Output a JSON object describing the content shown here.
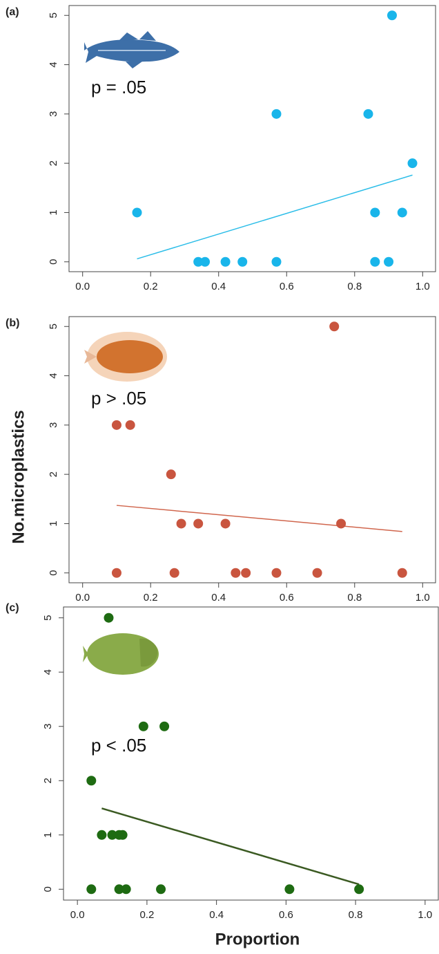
{
  "chart_data": [
    {
      "type": "scatter",
      "panel_label": "(a)",
      "annotation": "p = .05",
      "color": "#19b5ea",
      "x": [
        0.16,
        0.34,
        0.36,
        0.42,
        0.47,
        0.57,
        0.57,
        0.84,
        0.86,
        0.86,
        0.9,
        0.91,
        0.94,
        0.97
      ],
      "values": [
        1,
        0,
        0,
        0,
        0,
        0,
        3,
        3,
        1,
        0,
        0,
        5,
        1,
        2
      ],
      "fit": {
        "x": [
          0.16,
          0.97
        ],
        "values": [
          0.06,
          1.76
        ],
        "color": "#2bbde8"
      },
      "xlim": [
        -0.04,
        1.04
      ],
      "ylim": [
        -0.2,
        5.2
      ],
      "xticks": [
        {
          "value": 0,
          "label": "0.0"
        },
        0.2,
        0.4,
        0.6,
        0.8,
        {
          "value": 1,
          "label": "1.0"
        }
      ],
      "yticks": [
        0,
        1,
        2,
        3,
        4,
        5
      ]
    },
    {
      "type": "scatter",
      "panel_label": "(b)",
      "annotation": "p > .05",
      "color": "#c9553f",
      "x": [
        0.1,
        0.14,
        0.26,
        0.29,
        0.34,
        0.42,
        0.74,
        0.76,
        0.1,
        0.27,
        0.45,
        0.48,
        0.57,
        0.69,
        0.94
      ],
      "values": [
        3,
        3,
        2,
        1,
        1,
        1,
        5,
        1,
        0,
        0,
        0,
        0,
        0,
        0,
        0
      ],
      "fit": {
        "x": [
          0.1,
          0.94
        ],
        "values": [
          1.37,
          0.84
        ],
        "color": "#d0654c"
      },
      "xlim": [
        -0.04,
        1.04
      ],
      "ylim": [
        -0.2,
        5.2
      ],
      "xticks": [
        {
          "value": 0,
          "label": "0.0"
        },
        0.2,
        0.4,
        0.6,
        0.8,
        {
          "value": 1,
          "label": "1.0"
        }
      ],
      "yticks": [
        0,
        1,
        2,
        3,
        4,
        5
      ]
    },
    {
      "type": "scatter",
      "panel_label": "(c)",
      "annotation": "p < .05",
      "color": "#1e6b12",
      "x": [
        0.09,
        0.19,
        0.25,
        0.04,
        0.07,
        0.1,
        0.12,
        0.13,
        0.04,
        0.12,
        0.14,
        0.24,
        0.61,
        0.81
      ],
      "values": [
        5,
        3,
        3,
        2,
        1,
        1,
        1,
        1,
        0,
        0,
        0,
        0,
        0,
        0
      ],
      "fit": {
        "x": [
          0.07,
          0.81
        ],
        "values": [
          1.49,
          0.09
        ],
        "color": "#3b5a22"
      },
      "xlim": [
        -0.04,
        1.04
      ],
      "ylim": [
        -0.2,
        5.2
      ],
      "xticks": [
        {
          "value": 0,
          "label": "0.0"
        },
        0.2,
        0.4,
        0.6,
        0.8,
        {
          "value": 1,
          "label": "1.0"
        }
      ],
      "yticks": [
        0,
        1,
        2,
        3,
        4,
        5
      ]
    }
  ],
  "ylabel": "No.microplastics",
  "xlabel": "Proportion"
}
